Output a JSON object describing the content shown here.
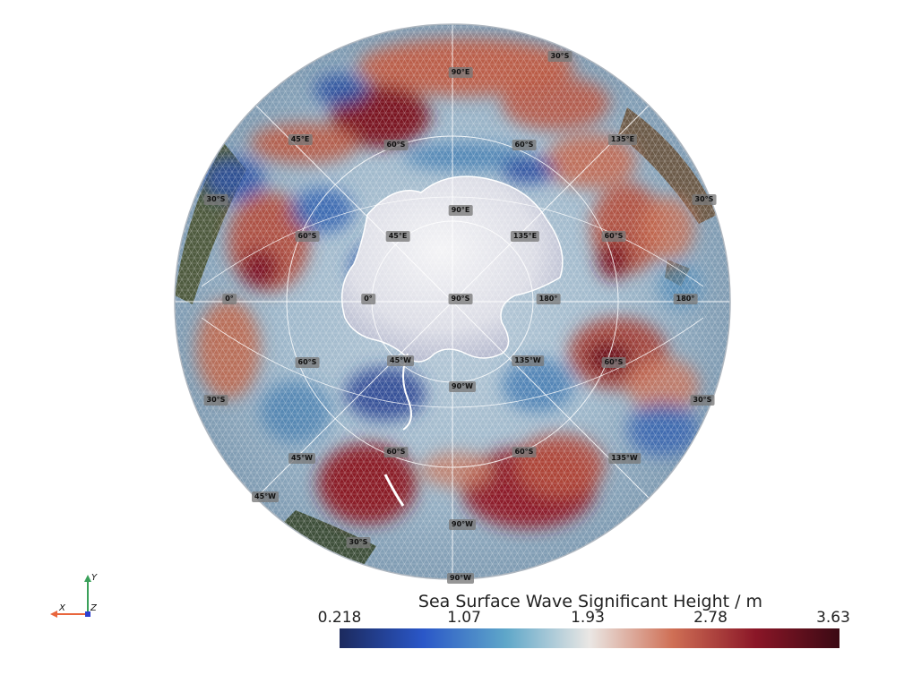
{
  "map": {
    "projection": "orthographic",
    "center": "90°S",
    "variable": "Sea Surface Wave Significant Height",
    "graticule_labels": [
      {
        "id": "lbl-30s-top",
        "text": "30°S"
      },
      {
        "id": "lbl-90e-outer",
        "text": "90°E"
      },
      {
        "id": "lbl-45e-outer",
        "text": "45°E"
      },
      {
        "id": "lbl-60s-tl",
        "text": "60°S"
      },
      {
        "id": "lbl-60s-tr",
        "text": "60°S"
      },
      {
        "id": "lbl-135e-outer",
        "text": "135°E"
      },
      {
        "id": "lbl-30s-left",
        "text": "30°S"
      },
      {
        "id": "lbl-30s-right",
        "text": "30°S"
      },
      {
        "id": "lbl-90e-inner",
        "text": "90°E"
      },
      {
        "id": "lbl-45e-inner",
        "text": "45°E"
      },
      {
        "id": "lbl-135e-inner",
        "text": "135°E"
      },
      {
        "id": "lbl-60s-left",
        "text": "60°S"
      },
      {
        "id": "lbl-60s-right",
        "text": "60°S"
      },
      {
        "id": "lbl-0-outer",
        "text": "0°"
      },
      {
        "id": "lbl-0-inner",
        "text": "0°"
      },
      {
        "id": "lbl-90s-center",
        "text": "90°S"
      },
      {
        "id": "lbl-180-inner",
        "text": "180°"
      },
      {
        "id": "lbl-180-outer",
        "text": "180°"
      },
      {
        "id": "lbl-60s-ll",
        "text": "60°S"
      },
      {
        "id": "lbl-45w-inner",
        "text": "45°W"
      },
      {
        "id": "lbl-135w-inner",
        "text": "135°W"
      },
      {
        "id": "lbl-60s-lr",
        "text": "60°S"
      },
      {
        "id": "lbl-30s-ll",
        "text": "30°S"
      },
      {
        "id": "lbl-90w-inner",
        "text": "90°W"
      },
      {
        "id": "lbl-30s-lr",
        "text": "30°S"
      },
      {
        "id": "lbl-45w-mid",
        "text": "45°W"
      },
      {
        "id": "lbl-60s-bl",
        "text": "60°S"
      },
      {
        "id": "lbl-60s-br",
        "text": "60°S"
      },
      {
        "id": "lbl-135w-outer",
        "text": "135°W"
      },
      {
        "id": "lbl-45w-outer",
        "text": "45°W"
      },
      {
        "id": "lbl-90w-mid",
        "text": "90°W"
      },
      {
        "id": "lbl-30s-bottom",
        "text": "30°S"
      },
      {
        "id": "lbl-90w-outer",
        "text": "90°W"
      }
    ]
  },
  "colorbar": {
    "title": "Sea Surface Wave Significant Height / m",
    "min": 0.218,
    "max": 3.63,
    "ticks": [
      "0.218",
      "1.07",
      "1.93",
      "2.78",
      "3.63"
    ],
    "colormap": "balance",
    "colors": [
      "#1c2a5e",
      "#2a57c8",
      "#5fa7c9",
      "#eae7e4",
      "#cf6f55",
      "#8a1627",
      "#3b0a14"
    ]
  },
  "axes_widget": {
    "x_label": "X",
    "y_label": "Y",
    "z_label": "Z",
    "x_color": "#e8663d",
    "y_color": "#3aa05a",
    "z_color": "#2b3fd0"
  }
}
